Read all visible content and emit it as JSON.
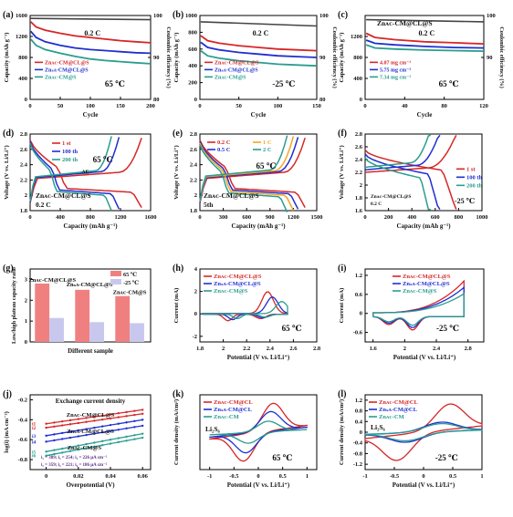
{
  "colors": {
    "red": "#d62728",
    "blue": "#1f2fd0",
    "teal": "#2a9d8f",
    "orange": "#f5a623",
    "pink": "#f08080",
    "lav": "#c8c8ee",
    "dark": "#5a2a8a"
  },
  "chart_data": [
    {
      "panel": "(a)",
      "type": "line",
      "xlabel": "Cycle",
      "ylabel": "Capacity (mAh g⁻¹)",
      "y2label": "Coulombic efficiency (%)",
      "xlim": [
        0,
        200
      ],
      "ylim": [
        0,
        1600
      ],
      "y2lim": [
        80,
        100
      ],
      "xticks": [
        0,
        50,
        100,
        150,
        200
      ],
      "yticks": [
        0,
        400,
        800,
        1200,
        1600
      ],
      "y2ticks": [
        80,
        90,
        100
      ],
      "annotations": [
        "0.2 C",
        "65 ℃"
      ],
      "legend": [
        "Znᴀᴄ-CM@CL@S",
        "Znₛᴀ-CM@CL@S",
        "Znᴀᴄ-CM@S"
      ],
      "series": [
        {
          "name": "Znᴀᴄ-CM@CL@S",
          "color": "red",
          "x": [
            1,
            10,
            25,
            50,
            75,
            100,
            125,
            150,
            175,
            200
          ],
          "y": [
            1480,
            1380,
            1320,
            1260,
            1210,
            1180,
            1150,
            1120,
            1100,
            1080
          ]
        },
        {
          "name": "Znₛᴀ-CM@CL@S",
          "color": "blue",
          "x": [
            1,
            10,
            25,
            50,
            75,
            100,
            125,
            150,
            175,
            200
          ],
          "y": [
            1300,
            1180,
            1100,
            1030,
            980,
            950,
            930,
            910,
            890,
            880
          ]
        },
        {
          "name": "Znᴀᴄ-CM@S",
          "color": "teal",
          "x": [
            1,
            10,
            25,
            50,
            75,
            100,
            125,
            150,
            175,
            200
          ],
          "y": [
            1150,
            1030,
            950,
            880,
            820,
            770,
            740,
            720,
            700,
            680
          ]
        }
      ],
      "ce": {
        "x": [
          1,
          200
        ],
        "y": [
          99.3,
          99.0
        ]
      }
    },
    {
      "panel": "(b)",
      "type": "line",
      "xlabel": "Cycle",
      "ylabel": "Capacity (mAh g⁻¹)",
      "y2label": "Coulombic efficiency (%)",
      "xlim": [
        0,
        150
      ],
      "ylim": [
        0,
        1000
      ],
      "y2lim": [
        80,
        100
      ],
      "xticks": [
        0,
        50,
        100,
        150
      ],
      "yticks": [
        0,
        200,
        400,
        600,
        800,
        1000
      ],
      "y2ticks": [
        80,
        90,
        100
      ],
      "annotations": [
        "0.2 C",
        "-25 ℃"
      ],
      "legend": [
        "Znᴀᴄ-CM@CL@S",
        "Znₛᴀ-CM@CL@S",
        "Znᴀᴄ-CM@S"
      ],
      "series": [
        {
          "name": "Znᴀᴄ-CM@CL@S",
          "color": "red",
          "x": [
            1,
            10,
            25,
            50,
            75,
            100,
            125,
            150
          ],
          "y": [
            760,
            700,
            670,
            640,
            620,
            600,
            590,
            580
          ]
        },
        {
          "name": "Znₛᴀ-CM@CL@S",
          "color": "blue",
          "x": [
            1,
            10,
            25,
            50,
            75,
            100,
            125,
            150
          ],
          "y": [
            680,
            620,
            590,
            560,
            540,
            520,
            510,
            500
          ]
        },
        {
          "name": "Znᴀᴄ-CM@S",
          "color": "teal",
          "x": [
            1,
            10,
            25,
            50,
            75,
            100,
            125,
            150
          ],
          "y": [
            580,
            520,
            490,
            460,
            440,
            420,
            410,
            400
          ]
        }
      ],
      "ce": {
        "x": [
          1,
          150
        ],
        "y": [
          98.5,
          97.5
        ]
      }
    },
    {
      "panel": "(c)",
      "type": "line",
      "title": "Znᴀᴄ-CM@CL@S",
      "xlabel": "Cycle",
      "ylabel": "Capacity (mAh g⁻¹)",
      "y2label": "Coulombic efficiency (%)",
      "xlim": [
        0,
        120
      ],
      "ylim": [
        0,
        1600
      ],
      "y2lim": [
        80,
        100
      ],
      "xticks": [
        0,
        40,
        80,
        120
      ],
      "yticks": [
        0,
        400,
        800,
        1200
      ],
      "y2ticks": [
        90,
        100
      ],
      "annotations": [
        "0.2 C",
        "65 ℃"
      ],
      "legend": [
        "4.07 mg cm⁻²",
        "5.75 mg cm⁻²",
        "7.34 mg cm⁻²"
      ],
      "series": [
        {
          "name": "4.07 mg cm⁻²",
          "color": "red",
          "x": [
            1,
            10,
            30,
            60,
            90,
            120
          ],
          "y": [
            1260,
            1180,
            1140,
            1100,
            1080,
            1060
          ]
        },
        {
          "name": "5.75 mg cm⁻²",
          "color": "blue",
          "x": [
            1,
            10,
            30,
            60,
            90,
            120
          ],
          "y": [
            1130,
            1070,
            1040,
            1010,
            990,
            980
          ]
        },
        {
          "name": "7.34 mg cm⁻²",
          "color": "teal",
          "x": [
            1,
            10,
            30,
            60,
            90,
            120
          ],
          "y": [
            1040,
            980,
            960,
            940,
            930,
            920
          ]
        }
      ],
      "ce": {
        "x": [
          1,
          120
        ],
        "y": [
          99.0,
          98.5
        ]
      }
    },
    {
      "panel": "(d)",
      "type": "line",
      "xlabel": "Capacity (mAh g⁻¹)",
      "ylabel": "Voltage (V vs. Li/Li⁺)",
      "xlim": [
        0,
        1600
      ],
      "ylim": [
        1.8,
        2.8
      ],
      "xticks": [
        0,
        400,
        800,
        1200,
        1600
      ],
      "yticks": [
        1.8,
        2.0,
        2.2,
        2.4,
        2.6,
        2.8
      ],
      "annotations": [
        "65 ℃",
        "ΔE",
        "Znᴀᴄ-CM@CL@S",
        "0.2 C"
      ],
      "legend": [
        "1 st",
        "100 th",
        "200 th"
      ],
      "series": [
        {
          "name": "1 st",
          "color": "red",
          "end": 1480
        },
        {
          "name": "100 th",
          "color": "blue",
          "end": 1180
        },
        {
          "name": "200 th",
          "color": "teal",
          "end": 1080
        }
      ]
    },
    {
      "panel": "(e)",
      "type": "line",
      "xlabel": "Capacity (mAh g⁻¹)",
      "ylabel": "Voltage (V vs. Li/Li⁺)",
      "xlim": [
        0,
        1500
      ],
      "ylim": [
        1.8,
        2.8
      ],
      "xticks": [
        0,
        300,
        600,
        900,
        1200,
        1500
      ],
      "yticks": [
        1.8,
        2.0,
        2.2,
        2.4,
        2.6,
        2.8
      ],
      "annotations": [
        "65 ℃",
        "Znᴀᴄ-CM@CL@S",
        "5th"
      ],
      "legend": [
        "0.2 C",
        "1 C",
        "0.5 C",
        "2 C"
      ],
      "series": [
        {
          "name": "0.2 C",
          "color": "red",
          "end": 1350
        },
        {
          "name": "0.5 C",
          "color": "blue",
          "end": 1260
        },
        {
          "name": "1 C",
          "color": "orange",
          "end": 1200
        },
        {
          "name": "2 C",
          "color": "teal",
          "end": 1120
        }
      ]
    },
    {
      "panel": "(f)",
      "type": "line",
      "xlabel": "Capacity (mAh g⁻¹)",
      "ylabel": "Voltage (V vs. Li/Li⁺)",
      "xlim": [
        0,
        1000
      ],
      "ylim": [
        1.6,
        2.8
      ],
      "xticks": [
        0,
        200,
        400,
        600,
        800,
        1000
      ],
      "yticks": [
        1.6,
        1.8,
        2.0,
        2.2,
        2.4,
        2.6,
        2.8
      ],
      "annotations": [
        "Znᴀᴄ-CM@CL@S",
        "0.2 C",
        "-25 ℃"
      ],
      "legend": [
        "1 st",
        "100 th",
        "200 th"
      ],
      "series": [
        {
          "name": "1 st",
          "color": "red",
          "end": 780
        },
        {
          "name": "100 th",
          "color": "blue",
          "end": 640
        },
        {
          "name": "200 th",
          "color": "teal",
          "end": 560
        }
      ]
    },
    {
      "panel": "(g)",
      "type": "bar",
      "xlabel": "Different sample",
      "ylabel": "Low/high plateau capacity ratio",
      "ylim": [
        0,
        3.5
      ],
      "yticks": [
        0,
        1,
        2,
        3
      ],
      "categories": [
        "Znᴀᴄ-CM@CL@S",
        "Znₛᴀ-CM@CL@S",
        "Znᴀᴄ-CM@S"
      ],
      "legend": [
        "65 ℃",
        "-25 ℃"
      ],
      "series": [
        {
          "name": "65 ℃",
          "color": "pink",
          "values": [
            2.8,
            2.5,
            2.2
          ]
        },
        {
          "name": "-25 ℃",
          "color": "lav",
          "values": [
            1.15,
            0.95,
            0.9
          ]
        }
      ]
    },
    {
      "panel": "(h)",
      "type": "line",
      "xlabel": "Potential (V vs. Li/Li⁺)",
      "ylabel": "Current (mA)",
      "xlim": [
        1.8,
        2.8
      ],
      "ylim": [
        -2.5,
        4
      ],
      "xticks": [
        1.8,
        2.0,
        2.2,
        2.4,
        2.6,
        2.8
      ],
      "yticks": [
        -2,
        0,
        2,
        4
      ],
      "annotations": [
        "65 ℃"
      ],
      "legend": [
        "Znᴀᴄ-CM@CL@S",
        "Znₛᴀ-CM@CL@S",
        "Znᴀᴄ-CM@S"
      ]
    },
    {
      "panel": "(i)",
      "type": "line",
      "xlabel": "Potential (V vs. Li/Li⁺)",
      "ylabel": "Current (mA)",
      "xlim": [
        1.5,
        3.0
      ],
      "ylim": [
        -0.9,
        1.4
      ],
      "xticks": [
        1.6,
        2.0,
        2.4,
        2.8
      ],
      "yticks": [
        -0.6,
        0.0,
        0.6,
        1.2
      ],
      "annotations": [
        "-25 ℃"
      ],
      "legend": [
        "Znᴀᴄ-CM@CL@S",
        "Znₛᴀ-CM@CL@S",
        "Znᴀᴄ-CM@S"
      ]
    },
    {
      "panel": "(j)",
      "type": "scatter",
      "title": "Exchange current density",
      "xlabel": "Overpotential (V)",
      "ylabel": "log(i) (mA cm⁻²)",
      "xlim": [
        -0.01,
        0.065
      ],
      "ylim": [
        -0.9,
        -0.15
      ],
      "xticks": [
        0.0,
        0.02,
        0.04,
        0.06
      ],
      "yticks": [
        -0.8,
        -0.6,
        -0.4,
        -0.2
      ],
      "legend": [
        "Znᴀᴄ-CM@CL@S",
        "Znₛᴀ-CM@CL@S",
        "Znᴀᴄ-CM@S"
      ],
      "series": [
        {
          "name": "i1",
          "color": "red",
          "x": [
            0.0,
            0.06
          ],
          "y": [
            -0.44,
            -0.3
          ]
        },
        {
          "name": "i2",
          "color": "red",
          "x": [
            0.0,
            0.06
          ],
          "y": [
            -0.48,
            -0.34
          ]
        },
        {
          "name": "i3",
          "color": "blue",
          "x": [
            0.0,
            0.06
          ],
          "y": [
            -0.56,
            -0.4
          ]
        },
        {
          "name": "i4",
          "color": "blue",
          "x": [
            0.0,
            0.06
          ],
          "y": [
            -0.62,
            -0.46
          ]
        },
        {
          "name": "i5",
          "color": "teal",
          "x": [
            0.0,
            0.06
          ],
          "y": [
            -0.72,
            -0.54
          ]
        },
        {
          "name": "i6",
          "color": "teal",
          "x": [
            0.0,
            0.06
          ],
          "y": [
            -0.76,
            -0.58
          ]
        }
      ],
      "notes": [
        "i₁ = 389; i₃ = 254; i₅ = 226 μA cm⁻²",
        "i₂ = 359; i₄ = 221; i₆ = 186 μA cm⁻²"
      ]
    },
    {
      "panel": "(k)",
      "type": "line",
      "xlabel": "Potential (V vs. Li/Li⁺)",
      "ylabel": "Current density (mA/cm²)",
      "xlim": [
        -1.2,
        1.2
      ],
      "ylim": [
        -5,
        5
      ],
      "xticks": [
        -1.0,
        -0.5,
        0.0,
        0.5,
        1.0
      ],
      "yticks": [],
      "annotations": [
        "Li₂S₆",
        "65 ℃"
      ],
      "legend": [
        "Znᴀᴄ-CM@CL",
        "Znₛᴀ-CM@CL",
        "Znᴀᴄ-CM"
      ]
    },
    {
      "panel": "(l)",
      "type": "line",
      "xlabel": "Potential (V vs. Li/Li⁺)",
      "ylabel": "Current density (mA/cm²)",
      "xlim": [
        -1.0,
        1.0
      ],
      "ylim": [
        -1.4,
        1.4
      ],
      "xticks": [
        -1.0,
        -0.5,
        0.0,
        0.5,
        1.0
      ],
      "yticks": [
        -1.2,
        -0.8,
        -0.4,
        0.0,
        0.4,
        0.8,
        1.2
      ],
      "annotations": [
        "Li₂S₆",
        "-25 ℃"
      ],
      "legend": [
        "Znᴀᴄ-CM@CL",
        "Znₛᴀ-CM@CL",
        "Znᴀᴄ-CM"
      ]
    }
  ]
}
